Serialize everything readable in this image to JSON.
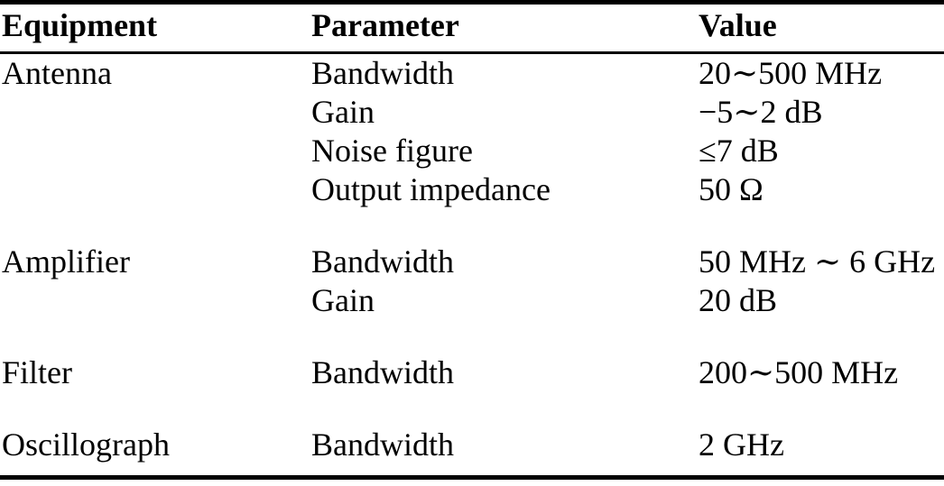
{
  "table": {
    "columns": [
      "Equipment",
      "Parameter",
      "Value"
    ],
    "groups": [
      {
        "equipment": "Antenna",
        "rows": [
          {
            "parameter": "Bandwidth",
            "value": "20∼500 MHz"
          },
          {
            "parameter": "Gain",
            "value": "−5∼2 dB"
          },
          {
            "parameter": "Noise figure",
            "value": "≤7 dB"
          },
          {
            "parameter": "Output impedance",
            "value": "50 Ω"
          }
        ]
      },
      {
        "equipment": "Amplifier",
        "rows": [
          {
            "parameter": "Bandwidth",
            "value": "50 MHz ∼ 6 GHz"
          },
          {
            "parameter": "Gain",
            "value": "20 dB"
          }
        ]
      },
      {
        "equipment": "Filter",
        "rows": [
          {
            "parameter": "Bandwidth",
            "value": "200∼500 MHz"
          }
        ]
      },
      {
        "equipment": "Oscillograph",
        "rows": [
          {
            "parameter": "Bandwidth",
            "value": "2 GHz"
          }
        ]
      }
    ]
  },
  "colors": {
    "text": "#000000",
    "background": "#ffffff",
    "rule": "#000000"
  }
}
